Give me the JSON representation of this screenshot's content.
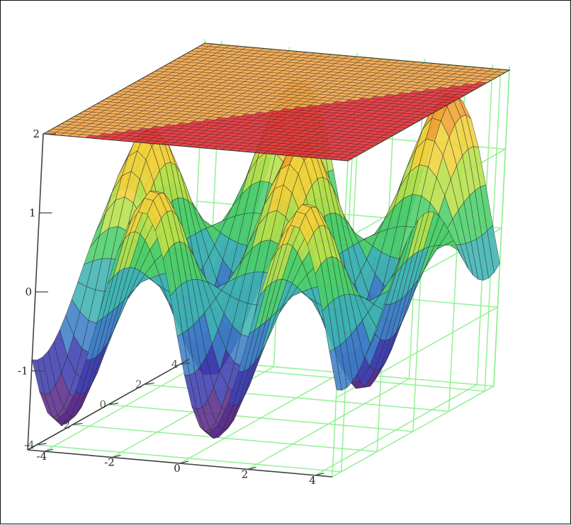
{
  "chart_data": {
    "type": "surface3d",
    "title": "",
    "surfaces": [
      {
        "description": "wavy surface z = sin(x)*cos(y) style, colored by height (purple -> blue -> teal -> green -> yellow -> orange)",
        "x_range": [
          -4.5,
          4.5
        ],
        "y_range": [
          -4.5,
          4.5
        ],
        "z_range": [
          -2,
          2
        ],
        "colormap": [
          "#5b2c8a",
          "#3f3fb0",
          "#3d7fc7",
          "#3fb3b3",
          "#4ccf6a",
          "#b6e04a",
          "#f0d23a",
          "#f0a030"
        ]
      },
      {
        "description": "flat plane at z = 2",
        "z": 2,
        "colors": [
          "#f2a64a",
          "#e8323a"
        ]
      }
    ],
    "axes": {
      "x": {
        "ticks": [
          "-4",
          "-2",
          "0",
          "2",
          "4"
        ],
        "range": [
          -4.5,
          4.5
        ]
      },
      "y": {
        "ticks": [
          "-4",
          "-2",
          "0",
          "2",
          "4"
        ],
        "range": [
          -4.5,
          4.5
        ]
      },
      "z": {
        "ticks": [
          "-1",
          "0",
          "1",
          "2"
        ],
        "range": [
          -2,
          2
        ]
      }
    },
    "grid": true,
    "grid_color": "#8ef08e",
    "legend": "none"
  }
}
